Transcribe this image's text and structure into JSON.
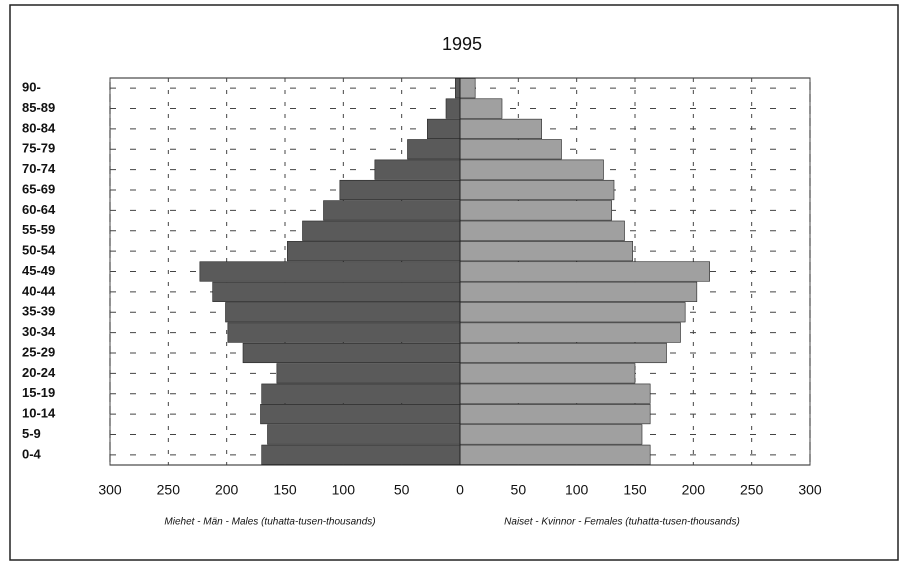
{
  "chart_data": {
    "type": "pyramid",
    "title": "1995",
    "categories": [
      "0-4",
      "5-9",
      "10-14",
      "15-19",
      "20-24",
      "25-29",
      "30-34",
      "35-39",
      "40-44",
      "45-49",
      "50-54",
      "55-59",
      "60-64",
      "65-69",
      "70-74",
      "75-79",
      "80-84",
      "85-89",
      "90-"
    ],
    "series": [
      {
        "name": "Miehet - Män - Males (tuhatta-tusen-thousands)",
        "color": "#5a5a5a",
        "side": "left",
        "values": [
          170,
          165,
          171,
          170,
          157,
          186,
          199,
          201,
          212,
          223,
          148,
          135,
          117,
          103,
          73,
          45,
          28,
          12,
          4
        ]
      },
      {
        "name": "Naiset - Kvinnor - Females (tuhatta-tusen-thousands)",
        "color": "#a0a0a0",
        "side": "right",
        "values": [
          163,
          156,
          163,
          163,
          150,
          177,
          189,
          193,
          203,
          214,
          148,
          141,
          130,
          132,
          123,
          87,
          70,
          36,
          13
        ]
      }
    ],
    "xlim": [
      -300,
      300
    ],
    "xticks": [
      {
        "value": -300,
        "label": "300"
      },
      {
        "value": -250,
        "label": "250"
      },
      {
        "value": -200,
        "label": "200"
      },
      {
        "value": -150,
        "label": "150"
      },
      {
        "value": -100,
        "label": "100"
      },
      {
        "value": -50,
        "label": "50"
      },
      0,
      50,
      100,
      150,
      200,
      250,
      300
    ],
    "grid": true
  }
}
